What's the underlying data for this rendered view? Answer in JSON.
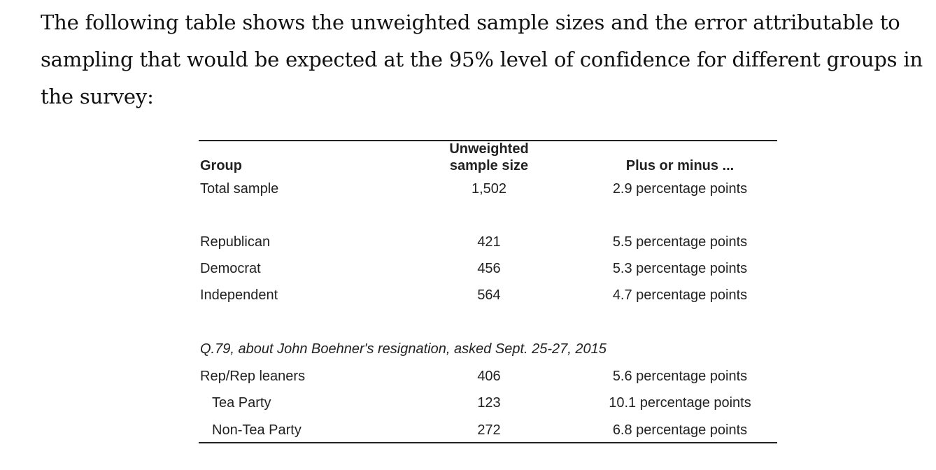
{
  "intro_text": "The following table shows the unweighted sample sizes and the error attributable to sampling that would be expected at the 95% level of confidence for different groups in the survey:",
  "table": {
    "headers": {
      "group": "Group",
      "size_line1": "Unweighted",
      "size_line2": "sample size",
      "margin": "Plus or minus ..."
    },
    "rows": [
      {
        "group": "Total sample",
        "size": "1,502",
        "margin": "2.9 percentage points"
      },
      {
        "group": "Republican",
        "size": "421",
        "margin": "5.5 percentage points"
      },
      {
        "group": "Democrat",
        "size": "456",
        "margin": "5.3 percentage points"
      },
      {
        "group": "Independent",
        "size": "564",
        "margin": "4.7 percentage points"
      }
    ],
    "note": "Q.79, about John Boehner's resignation, asked Sept. 25-27, 2015",
    "subrows": [
      {
        "group": "Rep/Rep leaners",
        "size": "406",
        "margin": "5.6 percentage points"
      },
      {
        "group": "Tea Party",
        "size": "123",
        "margin": "10.1 percentage points"
      },
      {
        "group": "Non-Tea Party",
        "size": "272",
        "margin": "6.8 percentage points"
      }
    ]
  }
}
